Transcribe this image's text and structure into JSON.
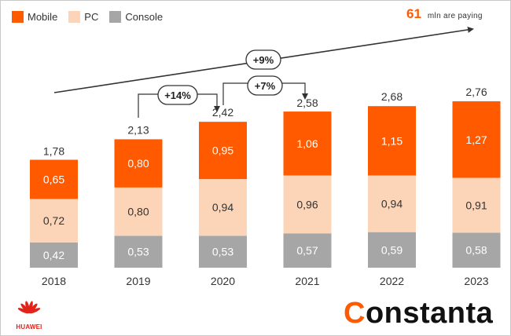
{
  "colors": {
    "mobile": "#ff5a00",
    "pc": "#fcd5b8",
    "console": "#a6a6a6",
    "text": "#333333",
    "accent": "#ff5a00"
  },
  "legend": {
    "mobile": "Mobile",
    "pc": "PC",
    "console": "Console"
  },
  "paying": {
    "number": "61",
    "text": "mln are paying"
  },
  "annotations": {
    "overall": "+9%",
    "growth_2019_2020": "+14%",
    "growth_2020_2021": "+7%"
  },
  "chart_data": {
    "type": "bar",
    "stacked": true,
    "categories": [
      "2018",
      "2019",
      "2020",
      "2021",
      "2022",
      "2023"
    ],
    "series": [
      {
        "name": "Console",
        "values": [
          0.42,
          0.53,
          0.53,
          0.57,
          0.59,
          0.58
        ],
        "labels": [
          "0,42",
          "0,53",
          "0,53",
          "0,57",
          "0,59",
          "0,58"
        ]
      },
      {
        "name": "PC",
        "values": [
          0.72,
          0.8,
          0.94,
          0.96,
          0.94,
          0.91
        ],
        "labels": [
          "0,72",
          "0,80",
          "0,94",
          "0,96",
          "0,94",
          "0,91"
        ]
      },
      {
        "name": "Mobile",
        "values": [
          0.65,
          0.8,
          0.95,
          1.06,
          1.15,
          1.27
        ],
        "labels": [
          "0,65",
          "0,80",
          "0,95",
          "1,06",
          "1,15",
          "1,27"
        ]
      }
    ],
    "totals": [
      1.78,
      2.13,
      2.42,
      2.58,
      2.68,
      2.76
    ],
    "total_labels": [
      "1,78",
      "2,13",
      "2,42",
      "2,58",
      "2,68",
      "2,76"
    ],
    "ylim": [
      0,
      2.76
    ],
    "grid": false,
    "legend_position": "top-left"
  },
  "logos": {
    "huawei": "HUAWEI",
    "brand_first": "C",
    "brand_rest": "onstanta"
  }
}
